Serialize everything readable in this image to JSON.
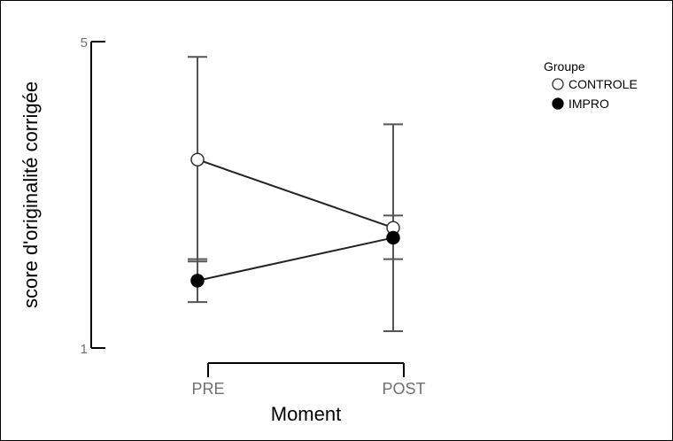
{
  "chart_data": {
    "type": "line",
    "categories": [
      "PRE",
      "POST"
    ],
    "xlabel": "Moment",
    "ylabel": "score d'originalité corrigée",
    "ylim": [
      1,
      5
    ],
    "yticks": [
      "1",
      "5"
    ],
    "legend": {
      "title": "Groupe",
      "placement": "top-right"
    },
    "series": [
      {
        "name": "CONTROLE",
        "marker": "open-circle",
        "values": [
          3.46,
          2.57
        ],
        "error_low": [
          2.13,
          1.22
        ],
        "error_high": [
          4.8,
          3.92
        ]
      },
      {
        "name": "IMPRO",
        "marker": "filled-circle",
        "values": [
          1.88,
          2.44
        ],
        "error_low": [
          1.6,
          2.16
        ],
        "error_high": [
          2.16,
          2.73
        ]
      }
    ],
    "colors": {
      "line": "#222222",
      "errorbar": "#555555",
      "axis": "#000000",
      "tick_label": "#707070"
    },
    "grid": false
  }
}
